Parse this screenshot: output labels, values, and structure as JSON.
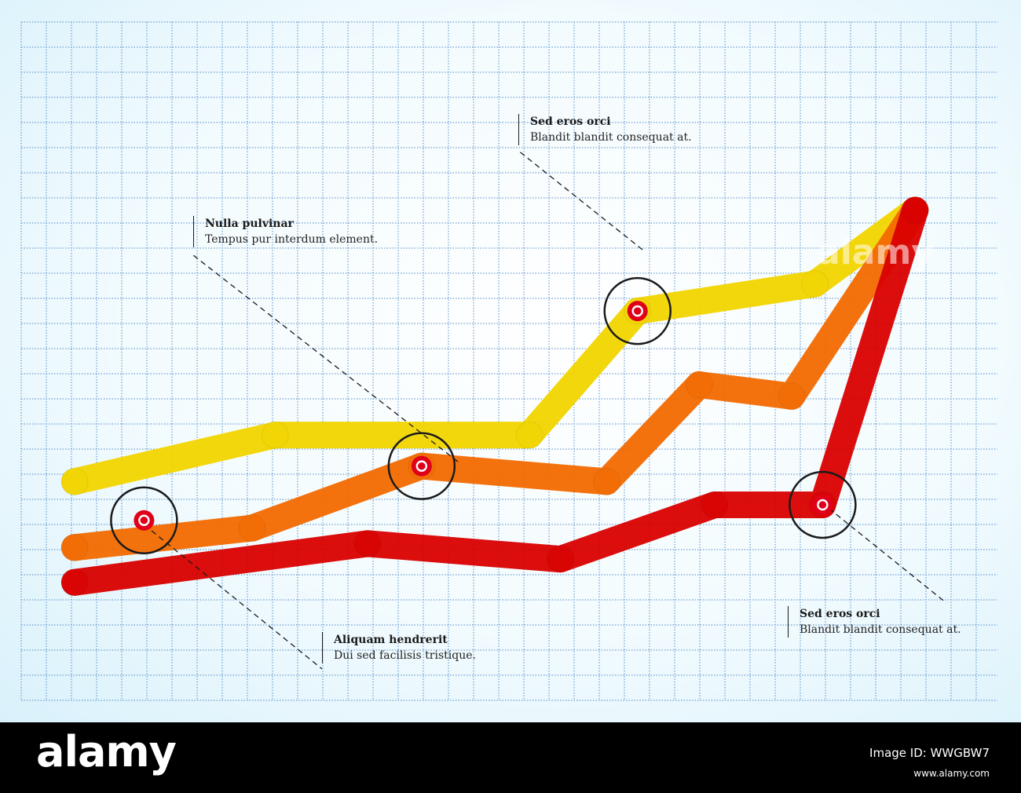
{
  "chart_data": {
    "type": "line",
    "title": "",
    "xlabel": "",
    "ylabel": "",
    "grid": true,
    "legend": "none",
    "xlim": [
      0,
      11
    ],
    "ylim": [
      -8,
      8
    ],
    "series": [
      {
        "color": "#f2d500",
        "x": [
          0,
          2.6,
          5.9,
          7.3,
          9.6,
          10.9
        ],
        "y": [
          -2.6,
          -1.4,
          -1.4,
          1.8,
          2.5,
          4.4
        ]
      },
      {
        "color": "#f26a00",
        "x": [
          0,
          2.3,
          4.5,
          6.9,
          8.1,
          9.3,
          10.9
        ],
        "y": [
          -4.3,
          -3.8,
          -2.2,
          -2.6,
          -0.1,
          -0.4,
          4.4
        ]
      },
      {
        "color": "#d90000",
        "x": [
          0,
          3.8,
          6.3,
          8.3,
          9.7,
          10.9
        ],
        "y": [
          -5.2,
          -4.2,
          -4.6,
          -3.2,
          -3.2,
          4.4
        ]
      }
    ],
    "markers": [
      {
        "series": 1,
        "x": 0.9,
        "y": -3.6
      },
      {
        "series": 1,
        "x": 4.5,
        "y": -2.2
      },
      {
        "series": 0,
        "x": 7.3,
        "y": 1.8
      },
      {
        "series": 2,
        "x": 9.7,
        "y": -3.2
      }
    ]
  },
  "callouts": [
    {
      "title": "Sed eros orci",
      "text": "Blandit blandit consequat at."
    },
    {
      "title": "Nulla pulvinar",
      "text": "Tempus pur interdum element."
    },
    {
      "title": "Aliquam hendrerit",
      "text": "Dui sed facilisis tristique."
    },
    {
      "title": "Sed eros orci",
      "text": "Blandit blandit consequat at."
    }
  ],
  "colors": {
    "grid": "#5a8fc9",
    "marker_ring": "#1a1a1a",
    "marker_dot": "#e0001a"
  },
  "watermark": "alamy",
  "footer": {
    "logo": "alamy",
    "ref": "Image ID: WWGBW7",
    "caption": "www.alamy.com"
  }
}
